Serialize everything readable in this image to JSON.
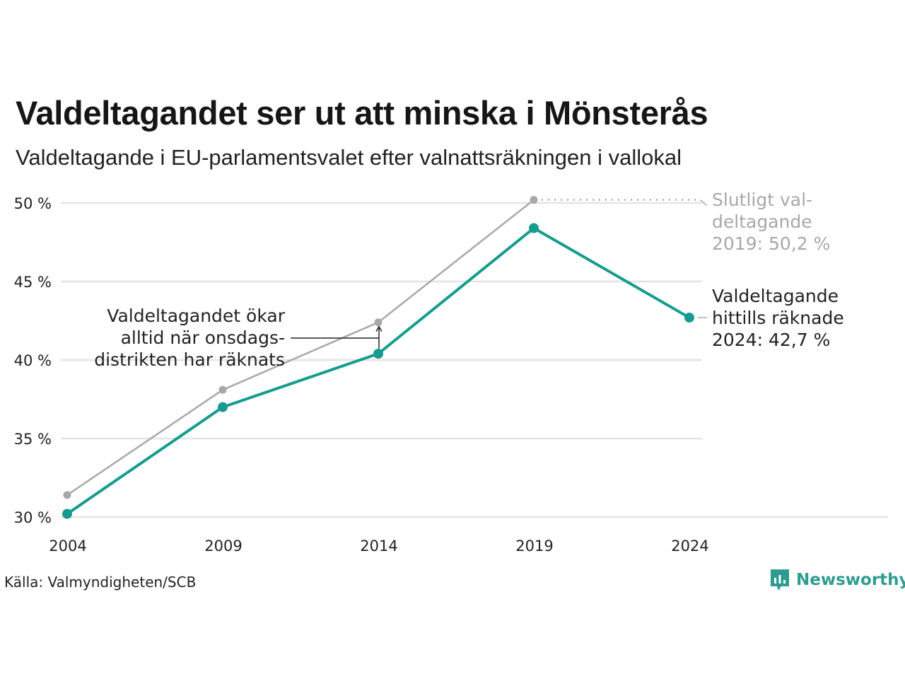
{
  "title": "Valdeltagandet ser ut att minska i Mönsterås",
  "subtitle": "Valdeltagande i EU-parlamentsvalet efter valnattsräkningen i vallokal",
  "source": "Källa: Valmyndigheten/SCB",
  "brand": {
    "name": "Newsworthy",
    "icon": "newsworthy-logo-icon",
    "color": "#2e9c8f"
  },
  "colors": {
    "preliminary": "#169c8f",
    "final": "#a8a8a8",
    "grid": "#e4e4e4",
    "annotation": "#222222"
  },
  "chart_data": {
    "type": "line",
    "x": [
      2004,
      2009,
      2014,
      2019,
      2024
    ],
    "ylim": [
      30,
      50
    ],
    "yticks": [
      "30 %",
      "35 %",
      "40 %",
      "45 %",
      "50 %"
    ],
    "xticks": [
      "2004",
      "2009",
      "2014",
      "2019",
      "2024"
    ],
    "grid": true,
    "series": [
      {
        "values": [
          31.4,
          38.1,
          42.4,
          50.2,
          null
        ],
        "color": "#a8a8a8"
      },
      {
        "values": [
          30.2,
          37.0,
          40.4,
          48.4,
          42.7
        ],
        "color": "#169c8f"
      }
    ],
    "annotations": {
      "final_2019": {
        "lines": [
          "Slutligt val-",
          "deltagande",
          "2019: 50,2 %"
        ]
      },
      "current_2024": {
        "lines": [
          "Valdeltagande",
          "hittills räknade",
          "2024: 42,7 %"
        ]
      },
      "wednesday": {
        "lines": [
          "Valdeltagandet ökar",
          "alltid när onsdags-",
          "distrikten har räknats"
        ]
      }
    }
  }
}
